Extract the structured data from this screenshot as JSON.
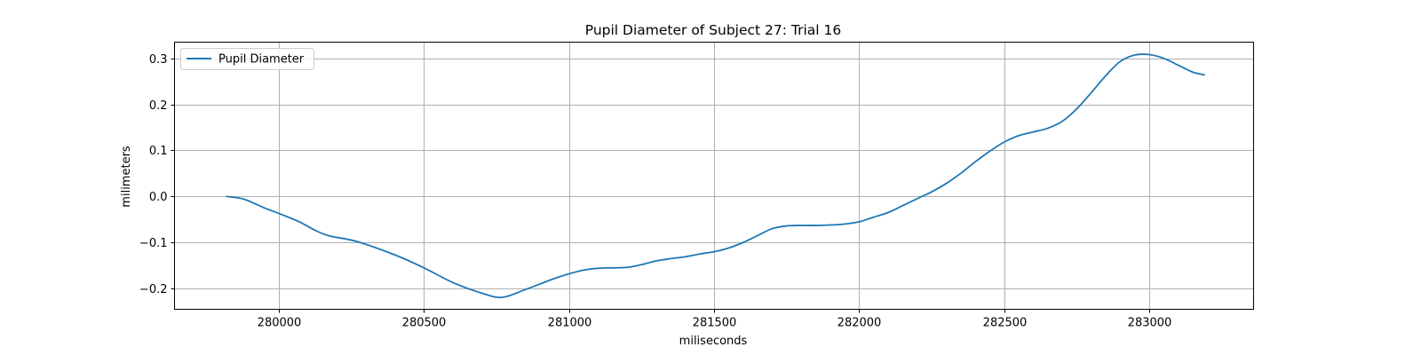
{
  "chart_data": {
    "type": "line",
    "title": "Pupil Diameter of Subject 27: Trial 16",
    "xlabel": "miliseconds",
    "ylabel": "milimeters",
    "xlim": [
      279640,
      283360
    ],
    "ylim": [
      -0.245,
      0.335
    ],
    "x_ticks": [
      280000,
      280500,
      281000,
      281500,
      282000,
      282500,
      283000
    ],
    "y_ticks": [
      -0.2,
      -0.1,
      0.0,
      0.1,
      0.2,
      0.3
    ],
    "grid": true,
    "legend_position": "top-left",
    "series": [
      {
        "name": "Pupil Diameter",
        "color": "#1f77b4",
        "x": [
          279820,
          279880,
          279950,
          280000,
          280070,
          280120,
          280170,
          280270,
          280400,
          280500,
          280600,
          280700,
          280770,
          280850,
          280950,
          281000,
          281050,
          281100,
          281150,
          281200,
          281250,
          281300,
          281350,
          281400,
          281450,
          281500,
          281550,
          281600,
          281650,
          281700,
          281750,
          281800,
          281850,
          281900,
          281950,
          282000,
          282050,
          282100,
          282150,
          282200,
          282250,
          282300,
          282350,
          282400,
          282450,
          282500,
          282550,
          282600,
          282650,
          282700,
          282750,
          282800,
          282850,
          282900,
          282950,
          283000,
          283050,
          283100,
          283150,
          283190
        ],
        "y": [
          0.0,
          -0.006,
          -0.025,
          -0.037,
          -0.055,
          -0.072,
          -0.085,
          -0.098,
          -0.127,
          -0.155,
          -0.187,
          -0.21,
          -0.219,
          -0.202,
          -0.178,
          -0.168,
          -0.16,
          -0.156,
          -0.155,
          -0.154,
          -0.148,
          -0.14,
          -0.135,
          -0.131,
          -0.125,
          -0.12,
          -0.112,
          -0.1,
          -0.085,
          -0.07,
          -0.064,
          -0.063,
          -0.063,
          -0.062,
          -0.06,
          -0.055,
          -0.045,
          -0.035,
          -0.02,
          -0.005,
          0.01,
          0.028,
          0.05,
          0.075,
          0.098,
          0.118,
          0.132,
          0.14,
          0.148,
          0.163,
          0.19,
          0.225,
          0.262,
          0.293,
          0.307,
          0.308,
          0.3,
          0.285,
          0.27,
          0.264
        ]
      }
    ]
  }
}
